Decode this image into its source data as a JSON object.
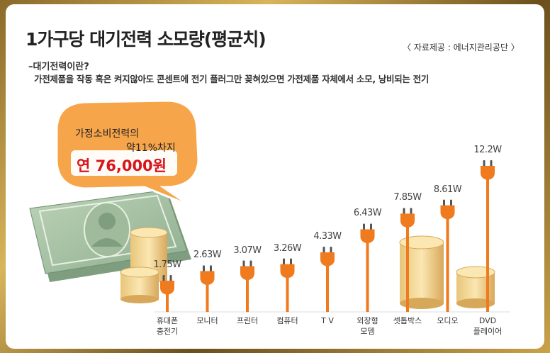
{
  "title": "1가구당 대기전력 소모량(평균치)",
  "source": "〈 자료제공 : 에너지관리공단 〉",
  "definition": {
    "heading": "–대기전력이란?",
    "body": "가전제품을 작동 혹은 켜지않아도 콘센트에 전기 플러그만 꽂혀있으면 가전제품 자체에서 소모, 낭비되는 전기"
  },
  "callout": {
    "line1": "가정소비전력의",
    "line2": "약11%차지",
    "line3": "연 76,000원"
  },
  "colors": {
    "accent": "#f07a1e",
    "callout_fill": "#f7a54a",
    "callout_text_red": "#d8141b"
  },
  "chart_data": {
    "type": "bar",
    "categories": [
      "휴대폰\n충전기",
      "모니터",
      "프린터",
      "컴퓨터",
      "T V",
      "외장형\n모뎀",
      "셋톱박스",
      "오디오",
      "DVD\n플레이어"
    ],
    "values": [
      1.75,
      2.63,
      3.07,
      3.26,
      4.33,
      6.43,
      7.85,
      8.61,
      12.2
    ],
    "value_labels": [
      "1.75W",
      "2.63W",
      "3.07W",
      "3.26W",
      "4.33W",
      "6.43W",
      "7.85W",
      "8.61W",
      "12.2W"
    ],
    "unit": "W",
    "ylim": [
      0,
      12.2
    ],
    "grid": false,
    "legend": "none"
  }
}
